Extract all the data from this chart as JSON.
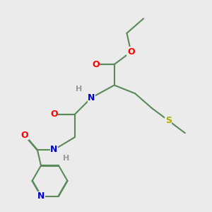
{
  "bg_color": "#ebebeb",
  "bond_color": "#5a8a5a",
  "bond_width": 1.5,
  "atom_colors": {
    "O": "#ff0000",
    "N": "#0000cc",
    "S": "#aaaa00",
    "H": "#999999",
    "C": "#5a8a5a"
  },
  "font_size_atom": 9,
  "font_size_H": 8,
  "fig_width": 3.0,
  "fig_height": 3.0,
  "dpi": 100
}
